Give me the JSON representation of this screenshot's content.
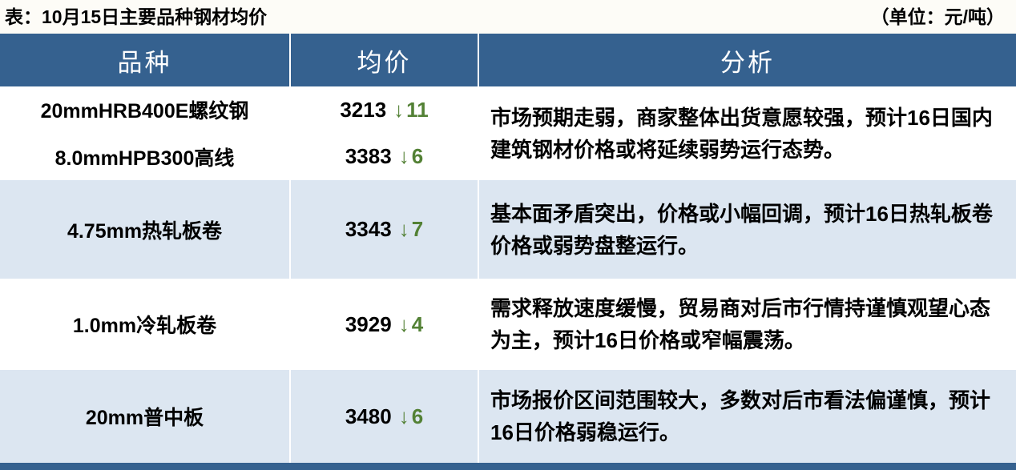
{
  "page": {
    "title": "表：10月15日主要品种钢材均价",
    "unit_label": "（单位：元/吨）"
  },
  "icons": {
    "down_arrow": "↓"
  },
  "colors": {
    "header_blue": "#35618F",
    "row_light_blue": "#DCE6F1",
    "row_white": "#FFFFFF",
    "change_green": "#538135",
    "footer_blue": "#35618F"
  },
  "table": {
    "headers": [
      {
        "label": "品种"
      },
      {
        "label": "均价"
      },
      {
        "label": "分析"
      }
    ],
    "rows": [
      {
        "products": [
          {
            "name": "20mmHRB400E螺纹钢",
            "price": "3213",
            "change": "11"
          },
          {
            "name": "8.0mmHPB300高线",
            "price": "3383",
            "change": "6"
          }
        ],
        "analysis": "市场预期走弱，商家整体出货意愿较强，预计16日国内建筑钢材价格或将延续弱势运行态势。"
      },
      {
        "products": [
          {
            "name": "4.75mm热轧板卷",
            "price": "3343",
            "change": "7"
          }
        ],
        "analysis": "基本面矛盾突出，价格或小幅回调，预计16日热轧板卷价格或弱势盘整运行。"
      },
      {
        "products": [
          {
            "name": "1.0mm冷轧板卷",
            "price": "3929",
            "change": "4"
          }
        ],
        "analysis": "需求释放速度缓慢，贸易商对后市行情持谨慎观望心态为主，预计16日价格或窄幅震荡。"
      },
      {
        "products": [
          {
            "name": "20mm普中板",
            "price": "3480",
            "change": "6"
          }
        ],
        "analysis": "市场报价区间范围较大，多数对后市看法偏谨慎，预计16日价格弱稳运行。"
      }
    ]
  }
}
